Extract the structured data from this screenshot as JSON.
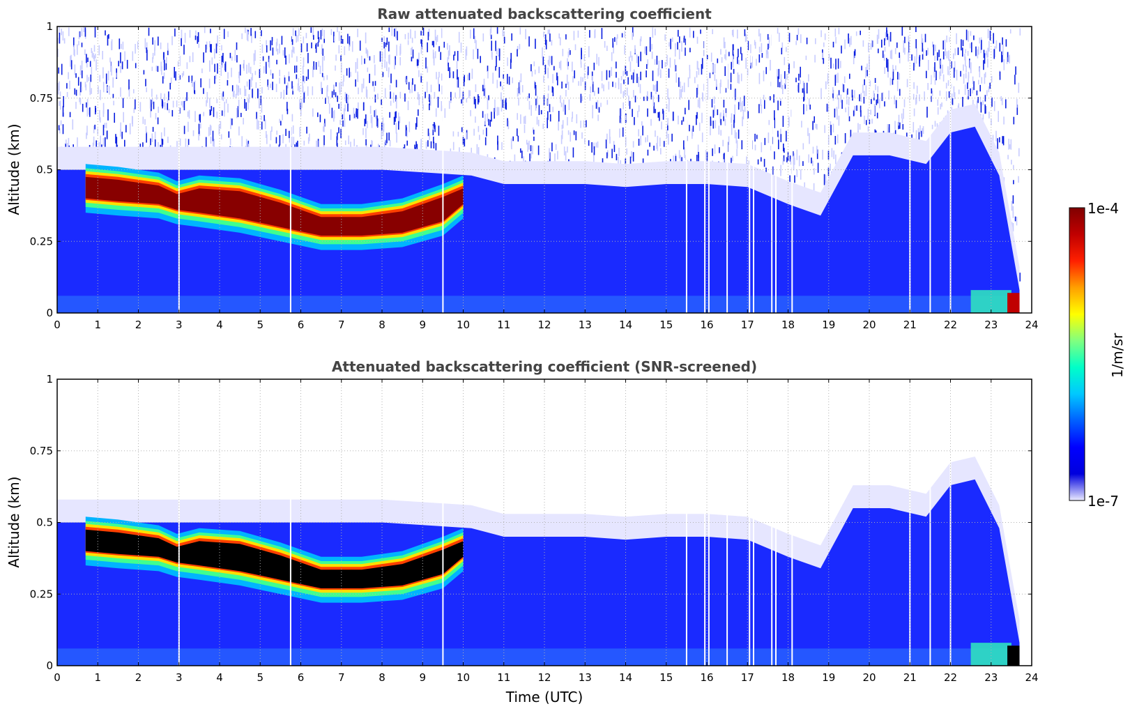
{
  "figure": {
    "xlabel": "Time (UTC)",
    "colorbar": {
      "label": "1/m/sr",
      "min_label": "1e-7",
      "max_label": "1e-4",
      "scale": "log",
      "colormap": [
        "#ebebff",
        "#0000dd",
        "#0000ff",
        "#0060ff",
        "#00c8ff",
        "#00ffc8",
        "#80ff80",
        "#ffff00",
        "#ffa000",
        "#ff2000",
        "#c00000",
        "#800000"
      ]
    }
  },
  "chart_data": [
    {
      "type": "heatmap",
      "title": "Raw attenuated backscattering coefficient",
      "xlabel": "",
      "ylabel": "Altitude (km)",
      "xlim": [
        0,
        24
      ],
      "ylim": [
        0,
        1
      ],
      "x_ticks": [
        "0",
        "1",
        "2",
        "3",
        "4",
        "5",
        "6",
        "7",
        "8",
        "9",
        "10",
        "11",
        "12",
        "13",
        "14",
        "15",
        "16",
        "17",
        "18",
        "19",
        "20",
        "21",
        "22",
        "23",
        "24"
      ],
      "y_ticks": [
        "0",
        "0.25",
        "0.5",
        "0.75",
        "1"
      ],
      "grid": true,
      "cloud_layer": {
        "time": [
          0.7,
          1.5,
          2.5,
          2.95,
          3.5,
          4.5,
          5.5,
          6.5,
          7.5,
          8.5,
          9.5,
          10.0
        ],
        "base_km": [
          0.4,
          0.39,
          0.38,
          0.36,
          0.35,
          0.33,
          0.3,
          0.27,
          0.27,
          0.28,
          0.32,
          0.38
        ],
        "top_km": [
          0.52,
          0.51,
          0.49,
          0.46,
          0.48,
          0.47,
          0.43,
          0.38,
          0.38,
          0.4,
          0.45,
          0.48
        ]
      },
      "boundary_layer": {
        "time": [
          0.0,
          2.0,
          4.0,
          6.0,
          8.0,
          10.2,
          11.0,
          12.0,
          13.0,
          14.0,
          15.0,
          16.0,
          17.0,
          18.0,
          18.8,
          19.6,
          20.5,
          21.4,
          22.0,
          22.6,
          23.2,
          23.7
        ],
        "top_km": [
          0.5,
          0.5,
          0.5,
          0.5,
          0.5,
          0.48,
          0.45,
          0.45,
          0.45,
          0.44,
          0.45,
          0.45,
          0.44,
          0.38,
          0.34,
          0.55,
          0.55,
          0.52,
          0.63,
          0.65,
          0.48,
          0.08
        ]
      },
      "gap_times": [
        3.0,
        5.75,
        9.5,
        15.5,
        15.95,
        16.05,
        16.5,
        17.05,
        17.15,
        17.6,
        17.7,
        18.1,
        21.0,
        21.5,
        22.0
      ]
    },
    {
      "type": "heatmap",
      "title": "Attenuated backscattering coefficient (SNR-screened)",
      "xlabel": "Time (UTC)",
      "ylabel": "Altitude (km)",
      "xlim": [
        0,
        24
      ],
      "ylim": [
        0,
        1
      ],
      "x_ticks": [
        "0",
        "1",
        "2",
        "3",
        "4",
        "5",
        "6",
        "7",
        "8",
        "9",
        "10",
        "11",
        "12",
        "13",
        "14",
        "15",
        "16",
        "17",
        "18",
        "19",
        "20",
        "21",
        "22",
        "23",
        "24"
      ],
      "y_ticks": [
        "0",
        "0.25",
        "0.5",
        "0.75",
        "1"
      ],
      "grid": true,
      "cloud_layer": {
        "time": [
          0.7,
          1.5,
          2.5,
          2.95,
          3.5,
          4.5,
          5.5,
          6.5,
          7.5,
          8.5,
          9.5,
          10.0
        ],
        "base_km": [
          0.4,
          0.39,
          0.38,
          0.36,
          0.35,
          0.33,
          0.3,
          0.27,
          0.27,
          0.28,
          0.32,
          0.38
        ],
        "top_km": [
          0.52,
          0.51,
          0.49,
          0.46,
          0.48,
          0.47,
          0.43,
          0.38,
          0.38,
          0.4,
          0.45,
          0.48
        ]
      },
      "boundary_layer": {
        "time": [
          0.0,
          2.0,
          4.0,
          6.0,
          8.0,
          10.2,
          11.0,
          12.0,
          13.0,
          14.0,
          15.0,
          16.0,
          17.0,
          18.0,
          18.8,
          19.6,
          20.5,
          21.4,
          22.0,
          22.6,
          23.2,
          23.7
        ],
        "top_km": [
          0.5,
          0.5,
          0.5,
          0.5,
          0.5,
          0.48,
          0.45,
          0.45,
          0.45,
          0.44,
          0.45,
          0.45,
          0.44,
          0.38,
          0.34,
          0.55,
          0.55,
          0.52,
          0.63,
          0.65,
          0.48,
          0.08
        ]
      },
      "gap_times": [
        3.0,
        5.75,
        9.5,
        15.5,
        15.95,
        16.05,
        16.5,
        17.05,
        17.15,
        17.6,
        17.7,
        18.1,
        21.0,
        21.5,
        22.0
      ]
    }
  ]
}
